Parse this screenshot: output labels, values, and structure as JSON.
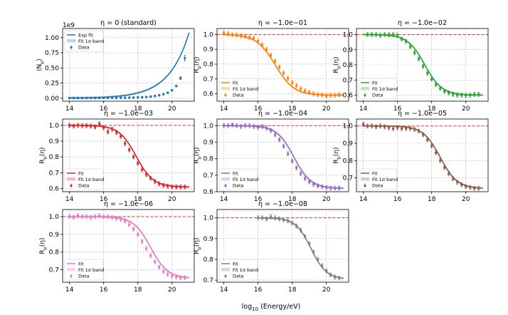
{
  "figure": {
    "xlabel": "log$_{10}$(Energy/eV)",
    "xlabel_main": "log",
    "xlabel_sub": "10",
    "xlabel_rest": " (Energy/eV)"
  },
  "chart_data": [
    {
      "type": "scatter",
      "title": "η = 0 (standard)",
      "ylabel": "⟨N",
      "ylabel_sub": "μ",
      "ylabel_end": "⟩",
      "offset_label": "1e9",
      "xlim": [
        13.6,
        21.3
      ],
      "ylim": [
        -0.05,
        1.15
      ],
      "xticks": [
        14,
        16,
        18,
        20
      ],
      "yticks": [
        0.0,
        0.25,
        0.5,
        0.75,
        1.0
      ],
      "ytick_labels": [
        "0.00",
        "0.25",
        "0.50",
        "0.75",
        "1.00"
      ],
      "color": "#1f77b4",
      "legend": [
        "Exp fit",
        "Fit 1σ band",
        "Data"
      ],
      "legend_loc": "upper-left",
      "reference_line": null,
      "series": [
        {
          "name": "Data",
          "x": [
            14.0,
            14.25,
            14.5,
            14.75,
            15.0,
            15.25,
            15.5,
            15.75,
            16.0,
            16.25,
            16.5,
            16.75,
            17.0,
            17.25,
            17.5,
            17.75,
            18.0,
            18.25,
            18.5,
            18.75,
            19.0,
            19.25,
            19.5,
            19.75,
            20.0,
            20.25,
            20.5,
            20.75
          ],
          "y": [
            0.003,
            0.003,
            0.003,
            0.003,
            0.003,
            0.003,
            0.003,
            0.003,
            0.004,
            0.004,
            0.004,
            0.005,
            0.006,
            0.007,
            0.008,
            0.01,
            0.012,
            0.015,
            0.02,
            0.026,
            0.035,
            0.048,
            0.066,
            0.09,
            0.13,
            0.2,
            0.33,
            0.66
          ]
        },
        {
          "name": "Exp fit",
          "x_range": [
            14.0,
            21.0
          ],
          "model": "exp",
          "y0": 0.003,
          "y1": 1.08
        }
      ]
    },
    {
      "type": "scatter",
      "title": "η = −1.0e−01",
      "ylabel": "R",
      "ylabel_sub": "μ",
      "ylabel_end": "(η)",
      "xlim": [
        13.6,
        21.3
      ],
      "ylim": [
        0.55,
        1.04
      ],
      "xticks": [
        14,
        16,
        18,
        20
      ],
      "yticks": [
        0.6,
        0.7,
        0.8,
        0.9,
        1.0
      ],
      "ytick_labels": [
        "0.6",
        "0.7",
        "0.8",
        "0.9",
        "1.0"
      ],
      "color": "#ff7f0e",
      "legend": [
        "Fit",
        "Fit 1σ band",
        "Data"
      ],
      "legend_loc": "lower-left",
      "reference_line": 1.0,
      "series": [
        {
          "name": "Data",
          "x": [
            14.0,
            14.25,
            14.5,
            14.75,
            15.0,
            15.25,
            15.5,
            15.75,
            16.0,
            16.25,
            16.5,
            16.75,
            17.0,
            17.25,
            17.5,
            17.75,
            18.0,
            18.25,
            18.5,
            18.75,
            19.0,
            19.25,
            19.5,
            19.75,
            20.0,
            20.25,
            20.5,
            20.75
          ],
          "y": [
            1.01,
            1.005,
            0.998,
            0.995,
            0.99,
            0.988,
            0.98,
            0.975,
            0.955,
            0.93,
            0.9,
            0.86,
            0.82,
            0.78,
            0.74,
            0.705,
            0.675,
            0.655,
            0.635,
            0.62,
            0.61,
            0.6,
            0.595,
            0.592,
            0.585,
            0.59,
            0.59,
            0.595
          ]
        },
        {
          "name": "Fit",
          "model": "sigmoid",
          "hi": 1.0,
          "lo": 0.59,
          "x0": 17.0,
          "w": 0.55
        }
      ]
    },
    {
      "type": "scatter",
      "title": "η = −1.0e−02",
      "ylabel": "R",
      "ylabel_sub": "μ",
      "ylabel_end": "(η)",
      "xlim": [
        13.6,
        21.3
      ],
      "ylim": [
        0.56,
        1.04
      ],
      "xticks": [
        14,
        16,
        18,
        20
      ],
      "yticks": [
        0.6,
        0.7,
        0.8,
        0.9,
        1.0
      ],
      "ytick_labels": [
        "0.6",
        "0.7",
        "0.8",
        "0.9",
        "1.0"
      ],
      "color": "#2ca02c",
      "legend": [
        "Fit",
        "Fit 1σ band",
        "Data"
      ],
      "legend_loc": "lower-left",
      "reference_line": 1.0,
      "series": [
        {
          "name": "Data",
          "x": [
            14.25,
            14.5,
            14.75,
            15.0,
            15.25,
            15.5,
            15.75,
            16.0,
            16.25,
            16.5,
            16.75,
            17.0,
            17.25,
            17.5,
            17.75,
            18.0,
            18.25,
            18.5,
            18.75,
            19.0,
            19.25,
            19.5,
            19.75,
            20.0,
            20.25,
            20.5,
            20.75
          ],
          "y": [
            1.0,
            1.0,
            1.0,
            0.995,
            1.0,
            1.0,
            1.0,
            0.995,
            0.97,
            0.955,
            0.92,
            0.88,
            0.84,
            0.79,
            0.745,
            0.705,
            0.67,
            0.645,
            0.625,
            0.615,
            0.605,
            0.6,
            0.6,
            0.598,
            0.6,
            0.605,
            0.605
          ]
        },
        {
          "name": "Fit",
          "model": "sigmoid",
          "hi": 1.0,
          "lo": 0.6,
          "x0": 17.6,
          "w": 0.5
        }
      ]
    },
    {
      "type": "scatter",
      "title": "η = −1.0e−03",
      "ylabel": "R",
      "ylabel_sub": "μ",
      "ylabel_end": "(η)",
      "xlim": [
        13.6,
        21.3
      ],
      "ylim": [
        0.58,
        1.04
      ],
      "xticks": [
        14,
        16,
        18,
        20
      ],
      "yticks": [
        0.6,
        0.7,
        0.8,
        0.9,
        1.0
      ],
      "ytick_labels": [
        "0.6",
        "0.7",
        "0.8",
        "0.9",
        "1.0"
      ],
      "color": "#d62728",
      "legend": [
        "Fit",
        "Fit 1σ band",
        "Data"
      ],
      "legend_loc": "lower-left",
      "reference_line": 1.0,
      "series": [
        {
          "name": "Data",
          "x": [
            14.0,
            14.25,
            14.5,
            14.75,
            15.0,
            15.25,
            15.5,
            15.75,
            16.0,
            16.25,
            16.5,
            16.75,
            17.0,
            17.25,
            17.5,
            17.75,
            18.0,
            18.25,
            18.5,
            18.75,
            19.0,
            19.25,
            19.5,
            19.75,
            20.0,
            20.25,
            20.5,
            20.75
          ],
          "y": [
            1.0,
            0.995,
            1.0,
            0.998,
            0.998,
            0.995,
            0.99,
            1.01,
            0.985,
            0.96,
            0.975,
            0.955,
            0.93,
            0.885,
            0.845,
            0.8,
            0.76,
            0.72,
            0.69,
            0.665,
            0.645,
            0.63,
            0.62,
            0.615,
            0.61,
            0.61,
            0.61,
            0.61
          ]
        },
        {
          "name": "Fit",
          "model": "sigmoid",
          "hi": 1.0,
          "lo": 0.61,
          "x0": 17.9,
          "w": 0.5
        }
      ]
    },
    {
      "type": "scatter",
      "title": "η = −1.0e−04",
      "ylabel": "R",
      "ylabel_sub": "μ",
      "ylabel_end": "(η)",
      "xlim": [
        13.6,
        21.3
      ],
      "ylim": [
        0.6,
        1.04
      ],
      "xticks": [
        14,
        16,
        18,
        20
      ],
      "yticks": [
        0.6,
        0.7,
        0.8,
        0.9,
        1.0
      ],
      "ytick_labels": [
        "0.6",
        "0.7",
        "0.8",
        "0.9",
        "1.0"
      ],
      "color": "#9467bd",
      "legend": [
        "Fit",
        "Fit 1σ band",
        "Data"
      ],
      "legend_loc": "lower-left",
      "reference_line": 1.0,
      "series": [
        {
          "name": "Data",
          "x": [
            14.0,
            14.25,
            14.5,
            14.75,
            15.0,
            15.25,
            15.5,
            15.75,
            16.0,
            16.25,
            16.5,
            16.75,
            17.0,
            17.25,
            17.5,
            17.75,
            18.0,
            18.25,
            18.5,
            18.75,
            19.0,
            19.25,
            19.5,
            19.75,
            20.0,
            20.25,
            20.5,
            20.75
          ],
          "y": [
            1.0,
            1.0,
            1.005,
            1.0,
            0.995,
            1.0,
            1.0,
            0.995,
            0.99,
            0.995,
            0.985,
            0.97,
            0.945,
            0.915,
            0.875,
            0.83,
            0.785,
            0.745,
            0.71,
            0.68,
            0.66,
            0.645,
            0.635,
            0.63,
            0.625,
            0.622,
            0.622,
            0.622
          ]
        },
        {
          "name": "Fit",
          "model": "sigmoid",
          "hi": 1.0,
          "lo": 0.62,
          "x0": 18.1,
          "w": 0.5
        }
      ]
    },
    {
      "type": "scatter",
      "title": "η = −1.0e−05",
      "ylabel": "R",
      "ylabel_sub": "μ",
      "ylabel_end": "(η)",
      "xlim": [
        13.6,
        21.3
      ],
      "ylim": [
        0.62,
        1.04
      ],
      "xticks": [
        14,
        16,
        18,
        20
      ],
      "yticks": [
        0.7,
        0.8,
        0.9,
        1.0
      ],
      "ytick_labels": [
        "0.7",
        "0.8",
        "0.9",
        "1.0"
      ],
      "color": "#8c564b",
      "legend": [
        "Fit",
        "Fit 1σ band",
        "Data"
      ],
      "legend_loc": "lower-left",
      "reference_line": 1.0,
      "series": [
        {
          "name": "Data",
          "x": [
            14.0,
            14.25,
            14.5,
            14.75,
            15.0,
            15.25,
            15.5,
            15.75,
            16.0,
            16.25,
            16.5,
            16.75,
            17.0,
            17.25,
            17.5,
            17.75,
            18.0,
            18.25,
            18.5,
            18.75,
            19.0,
            19.25,
            19.5,
            19.75,
            20.0,
            20.25,
            20.5,
            20.75
          ],
          "y": [
            1.01,
            1.0,
            1.0,
            0.995,
            1.0,
            0.995,
            0.99,
            0.985,
            0.99,
            0.985,
            0.985,
            0.985,
            0.98,
            0.97,
            0.95,
            0.92,
            0.885,
            0.845,
            0.8,
            0.76,
            0.725,
            0.695,
            0.675,
            0.66,
            0.65,
            0.645,
            0.64,
            0.64
          ]
        },
        {
          "name": "Fit",
          "model": "sigmoid",
          "hi": 1.0,
          "lo": 0.638,
          "x0": 18.5,
          "w": 0.5
        }
      ]
    },
    {
      "type": "scatter",
      "title": "η = −1.0e−06",
      "ylabel": "R",
      "ylabel_sub": "μ",
      "ylabel_end": "(η)",
      "xlim": [
        13.6,
        21.3
      ],
      "ylim": [
        0.63,
        1.04
      ],
      "xticks": [
        14,
        16,
        18,
        20
      ],
      "yticks": [
        0.7,
        0.8,
        0.9,
        1.0
      ],
      "ytick_labels": [
        "0.7",
        "0.8",
        "0.9",
        "1.0"
      ],
      "color": "#e377c2",
      "legend": [
        "Fit",
        "Fit 1σ band",
        "Data"
      ],
      "legend_loc": "lower-left",
      "reference_line": 1.0,
      "series": [
        {
          "name": "Data",
          "x": [
            14.0,
            14.25,
            14.5,
            14.75,
            15.0,
            15.25,
            15.5,
            15.75,
            16.0,
            16.25,
            16.5,
            16.75,
            17.0,
            17.25,
            17.5,
            17.75,
            18.0,
            18.25,
            18.5,
            18.75,
            19.0,
            19.25,
            19.5,
            19.75,
            20.0,
            20.25,
            20.5,
            20.75
          ],
          "y": [
            1.0,
            0.995,
            1.005,
            1.0,
            1.0,
            0.995,
            1.0,
            1.005,
            1.0,
            1.0,
            0.995,
            0.99,
            0.985,
            0.975,
            0.955,
            0.93,
            0.9,
            0.86,
            0.82,
            0.78,
            0.745,
            0.715,
            0.69,
            0.675,
            0.665,
            0.66,
            0.655,
            0.655
          ]
        },
        {
          "name": "Fit",
          "model": "sigmoid",
          "hi": 1.0,
          "lo": 0.652,
          "x0": 18.75,
          "w": 0.5
        }
      ]
    },
    {
      "type": "scatter",
      "title": "η = −1.0e−08",
      "ylabel": "R",
      "ylabel_sub": "μ",
      "ylabel_end": "(η)",
      "xlim": [
        13.6,
        21.3
      ],
      "ylim": [
        0.69,
        1.04
      ],
      "xticks": [
        14,
        16,
        18,
        20
      ],
      "yticks": [
        0.7,
        0.8,
        0.9,
        1.0
      ],
      "ytick_labels": [
        "0.7",
        "0.8",
        "0.9",
        "1.0"
      ],
      "color": "#7f7f7f",
      "legend": [
        "Fit",
        "Fit 1σ band",
        "Data"
      ],
      "legend_loc": "lower-left",
      "reference_line": 1.0,
      "series": [
        {
          "name": "Data",
          "x": [
            16.0,
            16.25,
            16.5,
            16.75,
            17.0,
            17.25,
            17.5,
            17.75,
            18.0,
            18.25,
            18.5,
            18.75,
            19.0,
            19.25,
            19.5,
            19.75,
            20.0,
            20.25,
            20.5,
            20.75
          ],
          "y": [
            1.0,
            1.0,
            0.995,
            1.005,
            1.0,
            0.995,
            0.99,
            0.985,
            0.975,
            0.96,
            0.94,
            0.91,
            0.875,
            0.835,
            0.8,
            0.77,
            0.745,
            0.725,
            0.715,
            0.71
          ]
        },
        {
          "name": "Fit",
          "model": "sigmoid",
          "hi": 1.0,
          "lo": 0.705,
          "x0": 19.1,
          "w": 0.45,
          "x_start": 16.0
        }
      ]
    }
  ]
}
